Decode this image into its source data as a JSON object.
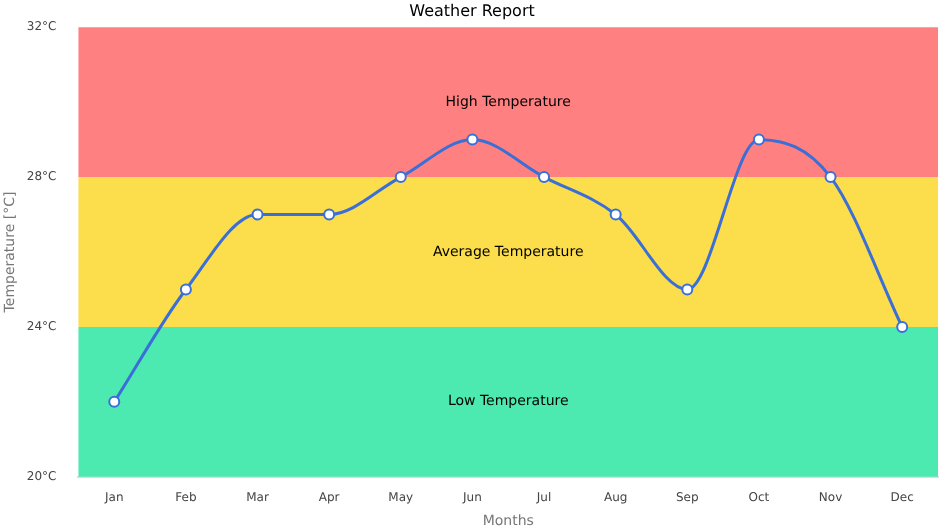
{
  "chart_data": {
    "type": "line",
    "title": "Weather Report",
    "xlabel": "Months",
    "ylabel": "Temperature [°C]",
    "categories": [
      "Jan",
      "Feb",
      "Mar",
      "Apr",
      "May",
      "Jun",
      "Jul",
      "Aug",
      "Sep",
      "Oct",
      "Nov",
      "Dec"
    ],
    "series": [
      {
        "color": "#3a6fd8",
        "values": [
          22,
          25,
          27,
          27,
          28,
          29,
          28,
          27,
          25,
          29,
          28,
          24
        ]
      }
    ],
    "ylim": [
      20,
      32
    ],
    "yticks": [
      {
        "value": 20,
        "label": "20°C"
      },
      {
        "value": 24,
        "label": "24°C"
      },
      {
        "value": 28,
        "label": "28°C"
      },
      {
        "value": 32,
        "label": "32°C"
      }
    ],
    "bands": [
      {
        "axis": "y",
        "from": 20,
        "to": 24,
        "label": "Low Temperature",
        "color": "#4ce9b0"
      },
      {
        "axis": "y",
        "from": 24,
        "to": 28,
        "label": "Average Temperature",
        "color": "#fcdd4b"
      },
      {
        "axis": "y",
        "from": 28,
        "to": 32,
        "label": "High Temperature",
        "color": "#ff8080"
      }
    ],
    "marker": "circle",
    "grid": false,
    "legend": false
  }
}
